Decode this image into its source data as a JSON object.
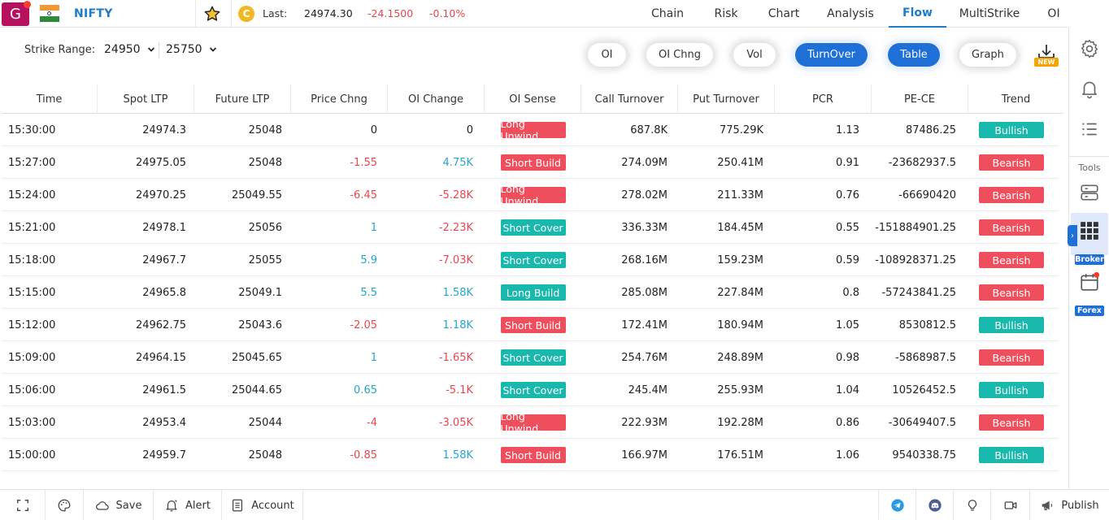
{
  "header": {
    "logo_letter": "G",
    "symbol": "NIFTY",
    "last_label": "Last:",
    "last_value": "24974.30",
    "last_change": "-24.1500",
    "last_change_pct": "-0.10%",
    "coin_letter": "C",
    "nav": [
      "Chain",
      "Risk",
      "Chart",
      "Analysis",
      "Flow",
      "MultiStrike",
      "OI"
    ],
    "active_nav": "Flow"
  },
  "controls": {
    "strike_range_label": "Strike Range:",
    "strike_from": "24950",
    "strike_to": "25750",
    "pills": [
      {
        "label": "OI",
        "active": false
      },
      {
        "label": "OI Chng",
        "active": false
      },
      {
        "label": "Vol",
        "active": false
      },
      {
        "label": "TurnOver",
        "active": true
      },
      {
        "label": "Table",
        "active": true
      },
      {
        "label": "Graph",
        "active": false
      }
    ],
    "new_badge": "NEW"
  },
  "table": {
    "columns": [
      "Time",
      "Spot LTP",
      "Future LTP",
      "Price Chng",
      "OI Change",
      "OI Sense",
      "Call Turnover",
      "Put Turnover",
      "PCR",
      "PE-CE",
      "Trend"
    ],
    "rows": [
      {
        "time": "15:30:00",
        "spot": "24974.3",
        "future": "25048",
        "price_chng": "0",
        "oi_change": "0",
        "oi_sense": "Long Unwind",
        "call_to": "687.8K",
        "put_to": "775.29K",
        "pcr": "1.13",
        "pe_ce": "87486.25",
        "trend": "Bullish"
      },
      {
        "time": "15:27:00",
        "spot": "24975.05",
        "future": "25048",
        "price_chng": "-1.55",
        "oi_change": "4.75K",
        "oi_sense": "Short Build",
        "call_to": "274.09M",
        "put_to": "250.41M",
        "pcr": "0.91",
        "pe_ce": "-23682937.5",
        "trend": "Bearish"
      },
      {
        "time": "15:24:00",
        "spot": "24970.25",
        "future": "25049.55",
        "price_chng": "-6.45",
        "oi_change": "-5.28K",
        "oi_sense": "Long Unwind",
        "call_to": "278.02M",
        "put_to": "211.33M",
        "pcr": "0.76",
        "pe_ce": "-66690420",
        "trend": "Bearish"
      },
      {
        "time": "15:21:00",
        "spot": "24978.1",
        "future": "25056",
        "price_chng": "1",
        "oi_change": "-2.23K",
        "oi_sense": "Short Cover",
        "call_to": "336.33M",
        "put_to": "184.45M",
        "pcr": "0.55",
        "pe_ce": "-151884901.25",
        "trend": "Bearish"
      },
      {
        "time": "15:18:00",
        "spot": "24967.7",
        "future": "25055",
        "price_chng": "5.9",
        "oi_change": "-7.03K",
        "oi_sense": "Short Cover",
        "call_to": "268.16M",
        "put_to": "159.23M",
        "pcr": "0.59",
        "pe_ce": "-108928371.25",
        "trend": "Bearish"
      },
      {
        "time": "15:15:00",
        "spot": "24965.8",
        "future": "25049.1",
        "price_chng": "5.5",
        "oi_change": "1.58K",
        "oi_sense": "Long Build",
        "call_to": "285.08M",
        "put_to": "227.84M",
        "pcr": "0.8",
        "pe_ce": "-57243841.25",
        "trend": "Bearish"
      },
      {
        "time": "15:12:00",
        "spot": "24962.75",
        "future": "25043.6",
        "price_chng": "-2.05",
        "oi_change": "1.18K",
        "oi_sense": "Short Build",
        "call_to": "172.41M",
        "put_to": "180.94M",
        "pcr": "1.05",
        "pe_ce": "8530812.5",
        "trend": "Bullish"
      },
      {
        "time": "15:09:00",
        "spot": "24964.15",
        "future": "25045.65",
        "price_chng": "1",
        "oi_change": "-1.65K",
        "oi_sense": "Short Cover",
        "call_to": "254.76M",
        "put_to": "248.89M",
        "pcr": "0.98",
        "pe_ce": "-5868987.5",
        "trend": "Bearish"
      },
      {
        "time": "15:06:00",
        "spot": "24961.5",
        "future": "25044.65",
        "price_chng": "0.65",
        "oi_change": "-5.1K",
        "oi_sense": "Short Cover",
        "call_to": "245.4M",
        "put_to": "255.93M",
        "pcr": "1.04",
        "pe_ce": "10526452.5",
        "trend": "Bullish"
      },
      {
        "time": "15:03:00",
        "spot": "24953.4",
        "future": "25044",
        "price_chng": "-4",
        "oi_change": "-3.05K",
        "oi_sense": "Long Unwind",
        "call_to": "222.93M",
        "put_to": "192.28M",
        "pcr": "0.86",
        "pe_ce": "-30649407.5",
        "trend": "Bearish"
      },
      {
        "time": "15:00:00",
        "spot": "24959.7",
        "future": "25048",
        "price_chng": "-0.85",
        "oi_change": "1.58K",
        "oi_sense": "Short Build",
        "call_to": "166.97M",
        "put_to": "176.51M",
        "pcr": "1.06",
        "pe_ce": "9540338.75",
        "trend": "Bullish"
      }
    ]
  },
  "sidebar": {
    "tools_label": "Tools",
    "broker_label": "Broker",
    "forex_label": "Forex",
    "icons": [
      "settings-icon",
      "bell-icon",
      "list-icon",
      "server-icon",
      "grid-icon",
      "calendar-icon"
    ]
  },
  "bottombar": {
    "save_label": "Save",
    "alert_label": "Alert",
    "account_label": "Account",
    "publish_label": "Publish"
  },
  "colors": {
    "accent": "#1e6fd6",
    "negative": "#e8474f",
    "positive": "#26a6c9",
    "red_tag": "#ef4f5d",
    "teal_tag": "#18b8ad",
    "logo": "#b5115e"
  }
}
